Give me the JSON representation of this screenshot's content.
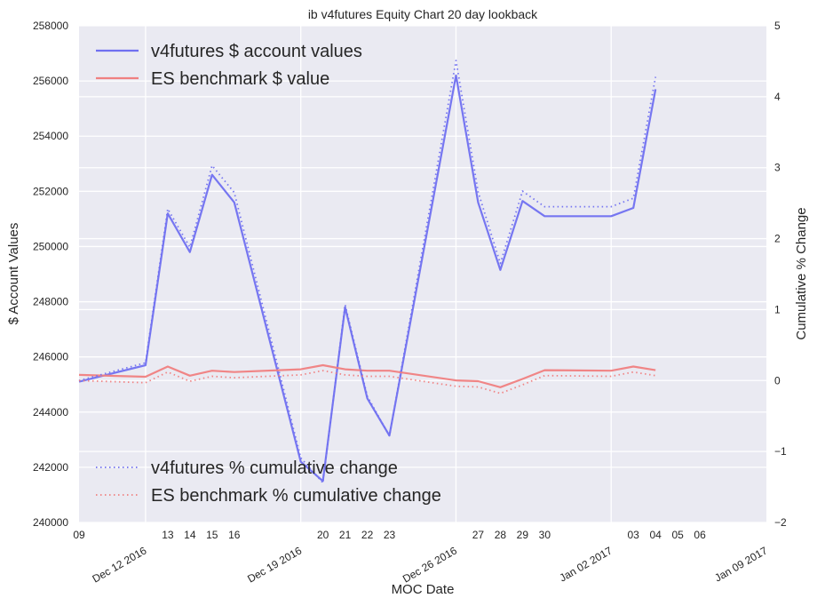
{
  "chart_data": {
    "type": "line",
    "title": "ib v4futures Equity Chart 20 day lookback",
    "xlabel": "MOC Date",
    "ylabel": "$ Account Values",
    "y2label": "Cumulative % Change",
    "ylim": [
      240000,
      258000
    ],
    "y2lim": [
      -2,
      5
    ],
    "y_ticks": [
      "240000",
      "242000",
      "244000",
      "246000",
      "248000",
      "250000",
      "252000",
      "254000",
      "256000",
      "258000"
    ],
    "y2_ticks": [
      "−2",
      "−1",
      "0",
      "1",
      "2",
      "3",
      "4",
      "5"
    ],
    "x_days": [
      0,
      3,
      4,
      5,
      6,
      7,
      10,
      11,
      12,
      13,
      14,
      17,
      18,
      19,
      20,
      21,
      24,
      25,
      26,
      27,
      28,
      31
    ],
    "x_minor_labels": [
      "09",
      "13",
      "14",
      "15",
      "16",
      "20",
      "21",
      "22",
      "23",
      "27",
      "28",
      "29",
      "30",
      "03",
      "04",
      "05",
      "06"
    ],
    "x_minor_days": [
      0,
      4,
      5,
      6,
      7,
      11,
      12,
      13,
      14,
      18,
      19,
      20,
      21,
      25,
      26,
      27,
      28
    ],
    "x_major_labels": [
      "Dec 12 2016",
      "Dec 19 2016",
      "Dec 26 2016",
      "Jan 02 2017",
      "Jan 09 2017"
    ],
    "x_major_days": [
      3,
      10,
      17,
      24,
      31
    ],
    "x_range_days": [
      0,
      31
    ],
    "series": [
      {
        "name": "v4futures $ account values",
        "axis": "left",
        "style": "solid",
        "color": "#7070f0",
        "values": [
          245100,
          245700,
          251200,
          249800,
          252600,
          251600,
          242200,
          241500,
          247800,
          244500,
          243150,
          256200,
          251600,
          249150,
          251650,
          251100,
          251100,
          251400,
          255700
        ]
      },
      {
        "name": "ES benchmark $ value",
        "axis": "left",
        "style": "solid",
        "color": "#f08080",
        "values": [
          245350,
          245280,
          245650,
          245320,
          245500,
          245450,
          245550,
          245700,
          245550,
          245500,
          245500,
          245150,
          245120,
          244900,
          245200,
          245520,
          245500,
          245650,
          245520
        ]
      },
      {
        "name": "v4futures % cumulative change",
        "axis": "right",
        "style": "dotted",
        "color": "#7070f0",
        "values": [
          0.0,
          0.25,
          2.42,
          1.88,
          3.03,
          2.65,
          -1.09,
          -1.44,
          1.07,
          -0.22,
          -0.78,
          4.51,
          2.66,
          1.65,
          2.67,
          2.45,
          2.45,
          2.57,
          4.28
        ]
      },
      {
        "name": "ES benchmark % cumulative change",
        "axis": "right",
        "style": "dotted",
        "color": "#f08080",
        "values": [
          0.0,
          -0.03,
          0.12,
          -0.01,
          0.06,
          0.04,
          0.08,
          0.14,
          0.08,
          0.06,
          0.06,
          -0.08,
          -0.09,
          -0.18,
          -0.06,
          0.07,
          0.06,
          0.12,
          0.07
        ]
      }
    ],
    "legend_top": "top-left",
    "legend_bottom": "bottom-left",
    "grid": true
  }
}
